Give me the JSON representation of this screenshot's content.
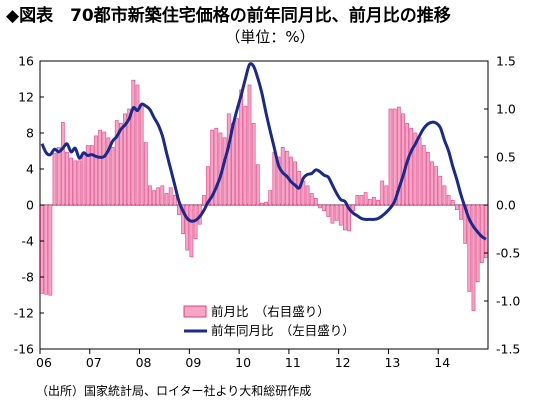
{
  "chart_data": {
    "type": "bar+line",
    "title": "◆図表　70都市新築住宅価格の前年同月比、前月比の推移",
    "subtitle": "（単位：%）",
    "source": "（出所）国家統計局、ロイター社より大和総研作成",
    "x_axis": {
      "labels": [
        "06",
        "07",
        "08",
        "09",
        "10",
        "11",
        "12",
        "13",
        "14"
      ],
      "start": "2006-01",
      "end": "2014-12"
    },
    "left_axis": {
      "min": -16,
      "max": 16,
      "ticks": [
        16,
        12,
        8,
        4,
        0,
        -4,
        -8,
        -12,
        -16
      ]
    },
    "right_axis": {
      "min": -1.5,
      "max": 1.5,
      "ticks": [
        "1.5",
        "1.0",
        "0.5",
        "0.0",
        "-0.5",
        "-1.0",
        "-1.5"
      ]
    },
    "legend": [
      {
        "label": "前月比　（右目盛り）",
        "kind": "bar",
        "color": "#f4a6c3"
      },
      {
        "label": "前年同月比　（左目盛り）",
        "kind": "line",
        "color": "#1a2a8c"
      }
    ],
    "series": [
      {
        "name": "前月比　（右目盛り）",
        "kind": "bar",
        "axis": "right",
        "values": [
          -0.92,
          -0.93,
          -0.94,
          0.54,
          0.6,
          0.86,
          0.55,
          0.49,
          0.46,
          0.46,
          0.55,
          0.62,
          0.62,
          0.72,
          0.78,
          0.76,
          0.7,
          0.6,
          0.88,
          0.85,
          0.95,
          1.0,
          1.3,
          1.25,
          1.05,
          0.65,
          0.2,
          0.15,
          0.18,
          0.2,
          0.12,
          0.18,
          0.1,
          -0.1,
          -0.3,
          -0.47,
          -0.54,
          -0.35,
          -0.2,
          0.1,
          0.4,
          0.78,
          0.8,
          0.75,
          0.7,
          0.95,
          0.85,
          0.9,
          1.2,
          1.03,
          1.25,
          0.85,
          0.42,
          0.02,
          0.03,
          0.15,
          0.55,
          0.5,
          0.6,
          0.56,
          0.5,
          0.45,
          0.35,
          0.25,
          0.2,
          0.12,
          0.07,
          -0.03,
          -0.06,
          -0.12,
          -0.19,
          -0.16,
          -0.21,
          -0.26,
          -0.27,
          -0.06,
          0.1,
          0.1,
          0.13,
          0.06,
          0.08,
          0.05,
          0.25,
          0.2,
          1.0,
          1.0,
          1.02,
          0.95,
          0.85,
          0.8,
          0.75,
          0.7,
          0.62,
          0.55,
          0.45,
          0.4,
          0.3,
          0.2,
          0.1,
          0.05,
          -0.05,
          -0.15,
          -0.4,
          -0.9,
          -1.1,
          -0.8,
          -0.6,
          -0.55
        ]
      },
      {
        "name": "前年同月比　（左目盛り）",
        "kind": "line",
        "axis": "left",
        "values": [
          6.8,
          5.8,
          5.6,
          6.2,
          5.9,
          6.3,
          6.8,
          5.9,
          6.3,
          5.2,
          5.8,
          5.5,
          5.6,
          5.4,
          5.3,
          5.4,
          6.1,
          7.1,
          7.6,
          8.4,
          8.9,
          9.6,
          10.8,
          10.5,
          11.2,
          11.0,
          10.6,
          9.7,
          8.9,
          7.7,
          5.8,
          4.0,
          2.2,
          0.4,
          -0.7,
          -1.5,
          -1.8,
          -1.7,
          -1.3,
          -0.6,
          0.3,
          1.0,
          2.0,
          3.2,
          4.9,
          6.6,
          8.8,
          10.6,
          12.2,
          14.0,
          15.6,
          15.4,
          14.1,
          12.4,
          10.2,
          8.2,
          6.3,
          4.4,
          3.6,
          3.2,
          2.6,
          2.2,
          1.9,
          3.0,
          3.4,
          3.5,
          3.9,
          3.7,
          3.3,
          3.1,
          2.2,
          1.3,
          0.6,
          0.4,
          -0.4,
          -0.9,
          -1.2,
          -1.5,
          -1.6,
          -1.6,
          -1.6,
          -1.5,
          -1.2,
          -0.8,
          -0.3,
          0.4,
          1.8,
          3.2,
          4.8,
          6.0,
          6.8,
          7.7,
          8.5,
          9.0,
          9.2,
          9.1,
          8.6,
          7.2,
          6.0,
          4.3,
          2.8,
          1.1,
          -0.3,
          -1.6,
          -2.4,
          -3.0,
          -3.5,
          -3.8
        ]
      }
    ]
  }
}
